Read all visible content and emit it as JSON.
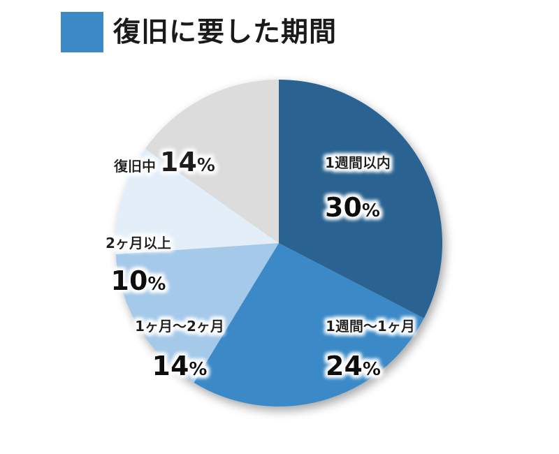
{
  "chart_data": {
    "type": "pie",
    "title": "復旧に要した期間",
    "title_color": "#3b8ac7",
    "slices": [
      {
        "label": "1週間以内",
        "value": 30,
        "display": "30",
        "unit": "%",
        "color": "#2a6391"
      },
      {
        "label": "1週間〜1ヶ月",
        "value": 24,
        "display": "24",
        "unit": "%",
        "color": "#3b8ac7"
      },
      {
        "label": "1ヶ月〜2ヶ月",
        "value": 14,
        "display": "14",
        "unit": "%",
        "color": "#a5c9e9"
      },
      {
        "label": "2ヶ月以上",
        "value": 10,
        "display": "10",
        "unit": "%",
        "color": "#e3eef9"
      },
      {
        "label": "復旧中",
        "value": 14,
        "display": "14",
        "unit": "%",
        "color": "#dcdcdc"
      }
    ]
  }
}
